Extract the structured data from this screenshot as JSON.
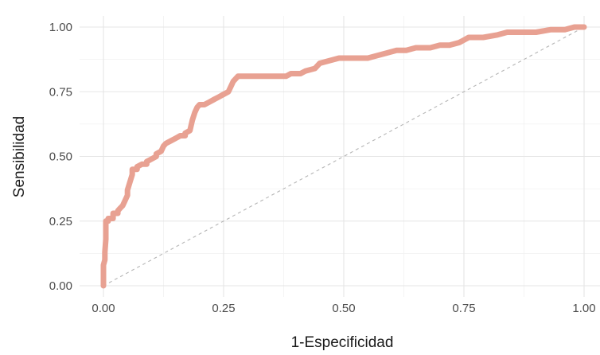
{
  "chart_data": {
    "type": "line",
    "title": "",
    "xlabel": "1-Especificidad",
    "ylabel": "Sensibilidad",
    "xlim": [
      0,
      1
    ],
    "ylim": [
      0,
      1
    ],
    "x_ticks": [
      0,
      0.25,
      0.5,
      0.75,
      1
    ],
    "y_ticks": [
      0,
      0.25,
      0.5,
      0.75,
      1
    ],
    "x_tick_labels": [
      "0.00",
      "0.25",
      "0.50",
      "0.75",
      "1.00"
    ],
    "y_tick_labels": [
      "0.00",
      "0.25",
      "0.50",
      "0.75",
      "1.00"
    ],
    "grid": true,
    "legend": "none",
    "colors": {
      "curve": "#e8a192",
      "reference": "#b5b5b5",
      "grid_major": "#e5e5e5",
      "grid_minor": "#f1f1f1"
    },
    "series": [
      {
        "values_xy": [
          [
            0.0,
            0.0
          ],
          [
            0.0,
            0.03
          ],
          [
            0.0,
            0.08
          ],
          [
            0.003,
            0.1
          ],
          [
            0.003,
            0.13
          ],
          [
            0.005,
            0.18
          ],
          [
            0.005,
            0.25
          ],
          [
            0.01,
            0.25
          ],
          [
            0.01,
            0.26
          ],
          [
            0.02,
            0.26
          ],
          [
            0.02,
            0.28
          ],
          [
            0.03,
            0.28
          ],
          [
            0.03,
            0.29
          ],
          [
            0.035,
            0.3
          ],
          [
            0.04,
            0.31
          ],
          [
            0.045,
            0.33
          ],
          [
            0.05,
            0.35
          ],
          [
            0.05,
            0.37
          ],
          [
            0.055,
            0.4
          ],
          [
            0.06,
            0.43
          ],
          [
            0.06,
            0.45
          ],
          [
            0.07,
            0.45
          ],
          [
            0.07,
            0.46
          ],
          [
            0.08,
            0.47
          ],
          [
            0.09,
            0.47
          ],
          [
            0.09,
            0.48
          ],
          [
            0.1,
            0.49
          ],
          [
            0.11,
            0.5
          ],
          [
            0.11,
            0.51
          ],
          [
            0.12,
            0.52
          ],
          [
            0.125,
            0.54
          ],
          [
            0.13,
            0.55
          ],
          [
            0.14,
            0.56
          ],
          [
            0.15,
            0.57
          ],
          [
            0.16,
            0.58
          ],
          [
            0.17,
            0.58
          ],
          [
            0.17,
            0.59
          ],
          [
            0.18,
            0.6
          ],
          [
            0.185,
            0.64
          ],
          [
            0.19,
            0.67
          ],
          [
            0.195,
            0.69
          ],
          [
            0.2,
            0.7
          ],
          [
            0.21,
            0.7
          ],
          [
            0.22,
            0.71
          ],
          [
            0.23,
            0.72
          ],
          [
            0.24,
            0.73
          ],
          [
            0.25,
            0.74
          ],
          [
            0.26,
            0.75
          ],
          [
            0.265,
            0.77
          ],
          [
            0.27,
            0.79
          ],
          [
            0.28,
            0.81
          ],
          [
            0.3,
            0.81
          ],
          [
            0.35,
            0.81
          ],
          [
            0.38,
            0.81
          ],
          [
            0.39,
            0.82
          ],
          [
            0.41,
            0.82
          ],
          [
            0.42,
            0.83
          ],
          [
            0.44,
            0.84
          ],
          [
            0.45,
            0.86
          ],
          [
            0.47,
            0.87
          ],
          [
            0.49,
            0.88
          ],
          [
            0.52,
            0.88
          ],
          [
            0.55,
            0.88
          ],
          [
            0.57,
            0.89
          ],
          [
            0.59,
            0.9
          ],
          [
            0.61,
            0.91
          ],
          [
            0.63,
            0.91
          ],
          [
            0.65,
            0.92
          ],
          [
            0.68,
            0.92
          ],
          [
            0.7,
            0.93
          ],
          [
            0.72,
            0.93
          ],
          [
            0.74,
            0.94
          ],
          [
            0.75,
            0.95
          ],
          [
            0.76,
            0.96
          ],
          [
            0.79,
            0.96
          ],
          [
            0.82,
            0.97
          ],
          [
            0.84,
            0.98
          ],
          [
            0.87,
            0.98
          ],
          [
            0.9,
            0.98
          ],
          [
            0.93,
            0.99
          ],
          [
            0.96,
            0.99
          ],
          [
            0.98,
            1.0
          ],
          [
            1.0,
            1.0
          ]
        ]
      },
      {
        "values_xy": [
          [
            0,
            0
          ],
          [
            1,
            1
          ]
        ]
      }
    ]
  }
}
